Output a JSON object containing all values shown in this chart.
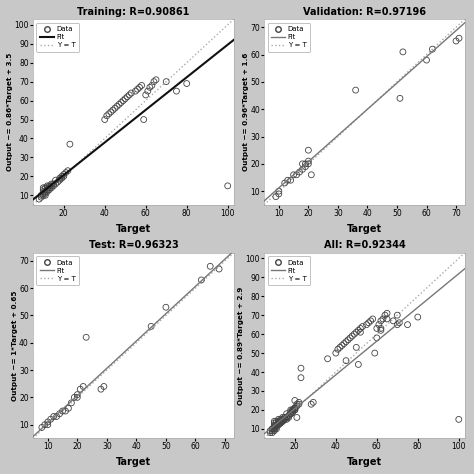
{
  "subplots": [
    {
      "title": "Training: R=0.90861",
      "ylabel": "Output ~= 0.86*Target + 3.5",
      "xlabel": "Target",
      "fit_slope": 0.86,
      "fit_intercept": 3.5,
      "xlim": [
        5,
        103
      ],
      "ylim": [
        5,
        103
      ],
      "xticks": [
        20,
        40,
        60,
        80,
        100
      ],
      "yticks": [
        10,
        20,
        30,
        40,
        50,
        60,
        70,
        80,
        90,
        100
      ],
      "data_x": [
        8,
        9,
        9,
        10,
        10,
        10,
        10,
        10,
        11,
        11,
        11,
        11,
        12,
        12,
        12,
        12,
        13,
        13,
        13,
        14,
        14,
        14,
        15,
        15,
        16,
        16,
        17,
        18,
        18,
        19,
        19,
        20,
        20,
        21,
        22,
        23,
        40,
        41,
        42,
        43,
        44,
        45,
        46,
        47,
        48,
        49,
        50,
        51,
        52,
        53,
        55,
        56,
        57,
        58,
        59,
        60,
        61,
        62,
        63,
        64,
        65,
        70,
        75,
        80,
        100
      ],
      "data_y": [
        8,
        9,
        10,
        10,
        11,
        12,
        13,
        14,
        10,
        11,
        12,
        14,
        12,
        13,
        14,
        15,
        13,
        14,
        15,
        14,
        15,
        16,
        15,
        16,
        16,
        18,
        17,
        18,
        19,
        19,
        20,
        20,
        21,
        22,
        23,
        37,
        50,
        52,
        53,
        54,
        55,
        56,
        57,
        58,
        59,
        60,
        61,
        62,
        63,
        64,
        65,
        66,
        67,
        68,
        50,
        63,
        65,
        67,
        68,
        70,
        71,
        70,
        65,
        69,
        15
      ],
      "fit_color": "#111111",
      "yt_color": "#aaaaaa",
      "marker_size": 18,
      "marker_edge": "#444444",
      "fit_lw": 1.5,
      "yt_lw": 1.0
    },
    {
      "title": "Validation: R=0.97196",
      "ylabel": "Output ~= 0.96*Target + 1.6",
      "xlabel": "Target",
      "fit_slope": 0.96,
      "fit_intercept": 1.6,
      "xlim": [
        5,
        73
      ],
      "ylim": [
        5,
        73
      ],
      "xticks": [
        10,
        20,
        30,
        40,
        50,
        60,
        70
      ],
      "yticks": [
        10,
        20,
        30,
        40,
        50,
        60,
        70
      ],
      "data_x": [
        9,
        10,
        10,
        12,
        13,
        14,
        15,
        16,
        17,
        18,
        18,
        19,
        19,
        20,
        20,
        20,
        21,
        36,
        51,
        52,
        60,
        62,
        70,
        71
      ],
      "data_y": [
        8,
        9,
        10,
        13,
        14,
        14,
        16,
        16,
        17,
        18,
        20,
        19,
        20,
        21,
        20,
        25,
        16,
        47,
        44,
        61,
        58,
        62,
        65,
        66
      ],
      "fit_color": "#777777",
      "yt_color": "#aaaaaa",
      "marker_size": 18,
      "marker_edge": "#444444",
      "fit_lw": 1.0,
      "yt_lw": 1.0
    },
    {
      "title": "Test: R=0.96323",
      "ylabel": "Output ~= 1*Target + 0.65",
      "xlabel": "Target",
      "fit_slope": 1.0,
      "fit_intercept": 0.65,
      "xlim": [
        5,
        73
      ],
      "ylim": [
        5,
        73
      ],
      "xticks": [
        10,
        20,
        30,
        40,
        50,
        60,
        70
      ],
      "yticks": [
        10,
        20,
        30,
        40,
        50,
        60,
        70
      ],
      "data_x": [
        8,
        9,
        10,
        10,
        11,
        12,
        13,
        14,
        15,
        16,
        17,
        18,
        19,
        20,
        20,
        21,
        22,
        23,
        28,
        29,
        45,
        50,
        62,
        65,
        68
      ],
      "data_y": [
        9,
        10,
        10,
        11,
        12,
        13,
        13,
        14,
        15,
        15,
        16,
        18,
        20,
        20,
        21,
        23,
        24,
        42,
        23,
        24,
        46,
        53,
        63,
        68,
        67
      ],
      "fit_color": "#777777",
      "yt_color": "#aaaaaa",
      "marker_size": 18,
      "marker_edge": "#444444",
      "fit_lw": 1.0,
      "yt_lw": 1.0
    },
    {
      "title": "All: R=0.92344",
      "ylabel": "Output ~= 0.89*Target + 2.9",
      "xlabel": "Target",
      "fit_slope": 0.89,
      "fit_intercept": 2.9,
      "xlim": [
        5,
        103
      ],
      "ylim": [
        5,
        103
      ],
      "xticks": [
        20,
        40,
        60,
        80,
        100
      ],
      "yticks": [
        10,
        20,
        30,
        40,
        50,
        60,
        70,
        80,
        90,
        100
      ],
      "data_x": [
        8,
        9,
        9,
        10,
        10,
        10,
        10,
        10,
        11,
        11,
        11,
        11,
        12,
        12,
        12,
        12,
        13,
        13,
        13,
        14,
        14,
        14,
        15,
        15,
        16,
        16,
        17,
        18,
        18,
        19,
        19,
        20,
        20,
        21,
        22,
        23,
        8,
        9,
        10,
        10,
        11,
        12,
        13,
        14,
        15,
        16,
        17,
        18,
        19,
        20,
        20,
        21,
        22,
        23,
        28,
        29,
        45,
        50,
        62,
        65,
        68,
        9,
        10,
        10,
        12,
        13,
        14,
        15,
        16,
        17,
        18,
        18,
        19,
        19,
        20,
        20,
        20,
        21,
        36,
        51,
        52,
        60,
        62,
        70,
        71,
        40,
        41,
        42,
        43,
        44,
        45,
        46,
        47,
        48,
        49,
        50,
        51,
        52,
        53,
        55,
        56,
        57,
        58,
        59,
        60,
        61,
        62,
        63,
        64,
        65,
        70,
        75,
        80,
        100
      ],
      "data_y": [
        8,
        9,
        10,
        10,
        11,
        12,
        13,
        14,
        10,
        11,
        12,
        14,
        12,
        13,
        14,
        15,
        13,
        14,
        15,
        14,
        15,
        16,
        15,
        16,
        16,
        18,
        17,
        18,
        19,
        19,
        20,
        20,
        21,
        22,
        23,
        37,
        9,
        10,
        10,
        11,
        12,
        13,
        13,
        14,
        15,
        15,
        16,
        18,
        20,
        20,
        21,
        23,
        24,
        42,
        23,
        24,
        46,
        53,
        63,
        68,
        67,
        8,
        9,
        10,
        13,
        14,
        14,
        16,
        16,
        17,
        18,
        20,
        19,
        20,
        21,
        20,
        25,
        16,
        47,
        44,
        61,
        58,
        62,
        65,
        66,
        50,
        52,
        53,
        54,
        55,
        56,
        57,
        58,
        59,
        60,
        61,
        62,
        63,
        64,
        65,
        66,
        67,
        68,
        50,
        63,
        65,
        67,
        68,
        70,
        71,
        70,
        65,
        69,
        15
      ],
      "fit_color": "#777777",
      "yt_color": "#aaaaaa",
      "marker_size": 18,
      "marker_edge": "#444444",
      "fit_lw": 1.0,
      "yt_lw": 1.0
    }
  ],
  "background_color": "#c8c8c8",
  "plot_bg_color": "#ffffff",
  "legend_fit_label": "Fit",
  "legend_yt_label": "Y = T",
  "legend_data_label": "Data"
}
